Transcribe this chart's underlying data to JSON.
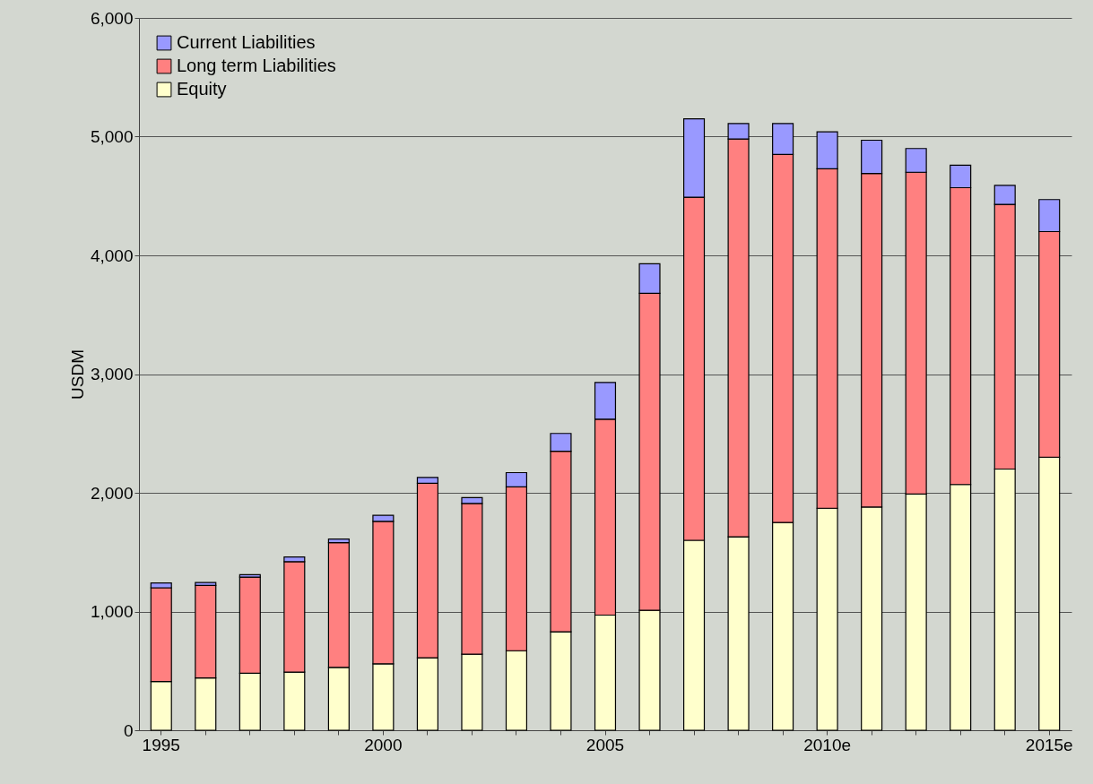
{
  "chart_data": {
    "type": "bar",
    "stacked": true,
    "ylabel": "USDM",
    "categories": [
      "1995",
      null,
      null,
      null,
      null,
      "2000",
      null,
      null,
      null,
      null,
      "2005",
      null,
      null,
      null,
      null,
      "2010e",
      null,
      null,
      null,
      null,
      "2015e"
    ],
    "series": [
      {
        "name": "Equity",
        "color": "#ffffcc",
        "values": [
          410,
          440,
          480,
          490,
          530,
          560,
          610,
          640,
          670,
          830,
          970,
          1010,
          1600,
          1630,
          1750,
          1870,
          1880,
          1990,
          2070,
          2200,
          2300
        ]
      },
      {
        "name": "Long term Liabilities",
        "color": "#ff8080",
        "values": [
          790,
          780,
          810,
          930,
          1050,
          1200,
          1470,
          1270,
          1380,
          1520,
          1650,
          2670,
          2890,
          3350,
          3100,
          2860,
          2810,
          2710,
          2500,
          2230,
          1900
        ]
      },
      {
        "name": "Current Liabilities",
        "color": "#9999ff",
        "values": [
          40,
          25,
          20,
          40,
          30,
          50,
          50,
          50,
          120,
          150,
          310,
          250,
          660,
          130,
          260,
          310,
          280,
          200,
          190,
          160,
          270
        ]
      }
    ],
    "ylim": [
      0,
      6000
    ],
    "yticks": [
      0,
      {
        "value": 1000,
        "label": "1,000"
      },
      {
        "value": 2000,
        "label": "2,000"
      },
      {
        "value": 3000,
        "label": "3,000"
      },
      {
        "value": 4000,
        "label": "4,000"
      },
      {
        "value": 5000,
        "label": "5,000"
      },
      {
        "value": 6000,
        "label": "6,000"
      }
    ],
    "grid": "y",
    "legend": "top left"
  }
}
